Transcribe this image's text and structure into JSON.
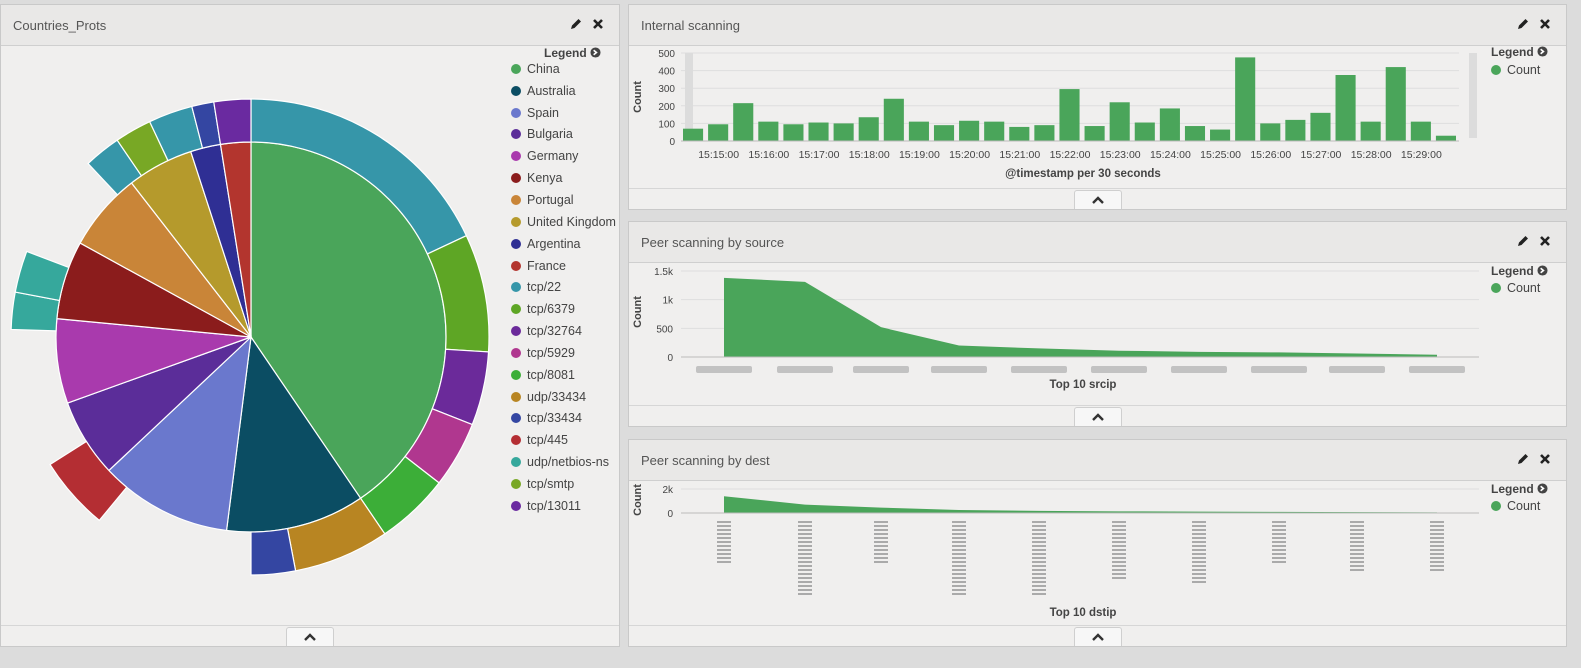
{
  "panels": {
    "countries": {
      "title": "Countries_Prots",
      "legend_title": "Legend",
      "legend": [
        {
          "label": "China",
          "color": "#4aa55a"
        },
        {
          "label": "Australia",
          "color": "#0b4d63"
        },
        {
          "label": "Spain",
          "color": "#6a78cd"
        },
        {
          "label": "Bulgaria",
          "color": "#5b2d99"
        },
        {
          "label": "Germany",
          "color": "#a93aad"
        },
        {
          "label": "Kenya",
          "color": "#8b1c1c"
        },
        {
          "label": "Portugal",
          "color": "#c98538"
        },
        {
          "label": "United Kingdom",
          "color": "#b59a2c"
        },
        {
          "label": "Argentina",
          "color": "#2f2f94"
        },
        {
          "label": "France",
          "color": "#b3352e"
        },
        {
          "label": "tcp/22",
          "color": "#3696a9"
        },
        {
          "label": "tcp/6379",
          "color": "#5ea625"
        },
        {
          "label": "tcp/32764",
          "color": "#6b2a9a"
        },
        {
          "label": "tcp/5929",
          "color": "#b0378f"
        },
        {
          "label": "tcp/8081",
          "color": "#3cae38"
        },
        {
          "label": "udp/33434",
          "color": "#b88522"
        },
        {
          "label": "tcp/33434",
          "color": "#3446a2"
        },
        {
          "label": "tcp/445",
          "color": "#b42e33"
        },
        {
          "label": "udp/netbios-ns",
          "color": "#36a89c"
        },
        {
          "label": "tcp/smtp",
          "color": "#78a825"
        },
        {
          "label": "tcp/13011",
          "color": "#6a2aa0"
        }
      ]
    },
    "internal": {
      "title": "Internal scanning",
      "legend_title": "Legend",
      "legend_item": "Count"
    },
    "peer_source": {
      "title": "Peer scanning by source",
      "legend_title": "Legend",
      "legend_item": "Count"
    },
    "peer_dest": {
      "title": "Peer scanning by dest",
      "legend_title": "Legend",
      "legend_item": "Count"
    }
  },
  "chart_data": [
    {
      "type": "pie",
      "title": "Countries_Prots",
      "inner_ring": {
        "categories": [
          "China",
          "Australia",
          "Spain",
          "Bulgaria",
          "Germany",
          "Kenya",
          "Portugal",
          "United Kingdom",
          "Argentina",
          "France"
        ],
        "values": [
          40.5,
          11.5,
          11,
          6.5,
          7,
          6.5,
          6.5,
          5.5,
          2.5,
          2.5
        ]
      },
      "outer_ring_note": "protocol slices subdivide each country"
    },
    {
      "type": "bar",
      "title": "Internal scanning",
      "xlabel": "@timestamp per 30 seconds",
      "ylabel": "Count",
      "ylim": [
        0,
        500
      ],
      "yticks": [
        0,
        100,
        200,
        300,
        400,
        500
      ],
      "xticks": [
        "15:15:00",
        "15:16:00",
        "15:17:00",
        "15:18:00",
        "15:19:00",
        "15:20:00",
        "15:21:00",
        "15:22:00",
        "15:23:00",
        "15:24:00",
        "15:25:00",
        "15:26:00",
        "15:27:00",
        "15:28:00",
        "15:29:00"
      ],
      "series": [
        {
          "name": "Count",
          "color": "#4aa55a",
          "values": [
            70,
            95,
            215,
            110,
            95,
            105,
            100,
            135,
            240,
            110,
            90,
            115,
            110,
            80,
            90,
            295,
            85,
            220,
            105,
            185,
            85,
            65,
            475,
            100,
            120,
            160,
            375,
            110,
            420,
            110,
            30
          ]
        }
      ]
    },
    {
      "type": "area",
      "title": "Peer scanning by source",
      "xlabel": "Top 10 srcip",
      "ylabel": "Count",
      "ylim": [
        0,
        1500
      ],
      "yticks": [
        "0",
        "500",
        "1k",
        "1.5k"
      ],
      "series": [
        {
          "name": "Count",
          "color": "#4aa55a",
          "values": [
            1380,
            1310,
            520,
            200,
            150,
            110,
            90,
            80,
            60,
            40
          ]
        }
      ]
    },
    {
      "type": "area",
      "title": "Peer scanning by dest",
      "xlabel": "Top 10 dstip",
      "ylabel": "Count",
      "ylim": [
        0,
        2000
      ],
      "yticks": [
        "0",
        "2k"
      ],
      "series": [
        {
          "name": "Count",
          "color": "#4aa55a",
          "values": [
            1400,
            700,
            450,
            250,
            180,
            140,
            110,
            90,
            70,
            50
          ]
        }
      ]
    }
  ]
}
